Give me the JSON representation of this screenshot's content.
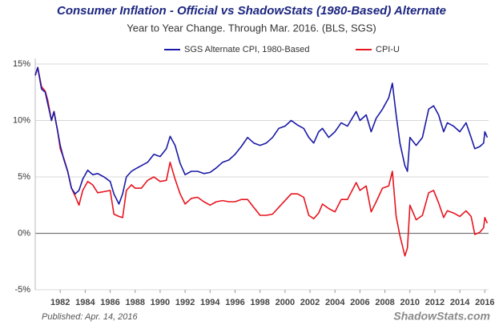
{
  "chart_data": {
    "type": "line",
    "title": "Consumer Inflation - Official vs ShadowStats (1980-Based) Alternate",
    "subtitle": "Year to Year Change. Through Mar. 2016.   (BLS, SGS)",
    "footnote": "Published: Apr. 14, 2016",
    "watermark": "ShadowStats.com",
    "x": [
      1980.0,
      1980.2,
      1980.5,
      1980.8,
      1981.0,
      1981.3,
      1981.5,
      1981.8,
      1982.0,
      1982.3,
      1982.6,
      1982.9,
      1983.2,
      1983.5,
      1983.8,
      1984.2,
      1984.6,
      1985.0,
      1985.5,
      1986.0,
      1986.3,
      1986.7,
      1987.0,
      1987.3,
      1987.7,
      1988.0,
      1988.5,
      1989.0,
      1989.5,
      1990.0,
      1990.5,
      1990.8,
      1991.2,
      1991.6,
      1992.0,
      1992.5,
      1993.0,
      1993.5,
      1994.0,
      1994.5,
      1995.0,
      1995.5,
      1996.0,
      1996.5,
      1997.0,
      1997.5,
      1998.0,
      1998.5,
      1999.0,
      1999.5,
      2000.0,
      2000.5,
      2001.0,
      2001.5,
      2001.9,
      2002.3,
      2002.7,
      2003.0,
      2003.5,
      2004.0,
      2004.5,
      2005.0,
      2005.7,
      2006.0,
      2006.5,
      2006.9,
      2007.3,
      2007.8,
      2008.3,
      2008.6,
      2008.9,
      2009.2,
      2009.6,
      2009.8,
      2010.0,
      2010.5,
      2011.0,
      2011.5,
      2011.9,
      2012.3,
      2012.7,
      2013.0,
      2013.5,
      2014.0,
      2014.5,
      2014.9,
      2015.2,
      2015.6,
      2015.9,
      2016.0,
      2016.2
    ],
    "series": [
      {
        "name": "SGS Alternate CPI, 1980-Based",
        "color": "#1a1aa6",
        "values": [
          14.0,
          14.7,
          12.8,
          12.5,
          11.5,
          10.0,
          10.8,
          9.0,
          7.8,
          6.5,
          5.5,
          4.0,
          3.5,
          3.8,
          4.8,
          5.6,
          5.2,
          5.3,
          5.0,
          4.6,
          3.5,
          2.6,
          3.5,
          5.0,
          5.5,
          5.7,
          6.0,
          6.3,
          7.0,
          6.8,
          7.5,
          8.6,
          7.8,
          6.2,
          5.2,
          5.5,
          5.5,
          5.3,
          5.4,
          5.8,
          6.3,
          6.5,
          7.0,
          7.7,
          8.5,
          8.0,
          7.8,
          8.0,
          8.5,
          9.3,
          9.5,
          10.0,
          9.6,
          9.3,
          8.5,
          8.0,
          9.0,
          9.3,
          8.5,
          9.0,
          9.8,
          9.5,
          10.8,
          10.0,
          10.5,
          9.0,
          10.2,
          11.0,
          12.0,
          13.3,
          10.5,
          8.0,
          6.0,
          5.5,
          8.5,
          7.8,
          8.5,
          11.0,
          11.3,
          10.5,
          9.0,
          9.8,
          9.5,
          9.0,
          9.8,
          8.5,
          7.5,
          7.7,
          8.0,
          9.0,
          8.5
        ]
      },
      {
        "name": "CPI-U",
        "color": "#e8141e",
        "values": [
          14.0,
          14.7,
          13.0,
          12.6,
          11.8,
          10.0,
          10.8,
          9.0,
          7.5,
          6.6,
          5.5,
          4.0,
          3.3,
          2.5,
          3.8,
          4.6,
          4.3,
          3.6,
          3.7,
          3.8,
          1.7,
          1.5,
          1.4,
          3.8,
          4.3,
          4.0,
          4.0,
          4.7,
          5.0,
          4.6,
          4.7,
          6.3,
          4.8,
          3.5,
          2.6,
          3.1,
          3.2,
          2.8,
          2.5,
          2.8,
          2.9,
          2.8,
          2.8,
          3.0,
          3.0,
          2.3,
          1.6,
          1.6,
          1.7,
          2.3,
          2.9,
          3.5,
          3.5,
          3.2,
          1.6,
          1.3,
          1.8,
          2.6,
          2.2,
          1.9,
          3.0,
          3.0,
          4.5,
          3.8,
          4.2,
          1.9,
          2.8,
          4.0,
          4.2,
          5.5,
          1.5,
          -0.2,
          -2.0,
          -1.3,
          2.5,
          1.2,
          1.6,
          3.6,
          3.8,
          2.7,
          1.4,
          2.0,
          1.8,
          1.5,
          2.0,
          1.5,
          -0.1,
          0.1,
          0.5,
          1.4,
          0.9
        ]
      }
    ],
    "xlim": [
      1980,
      2016.3
    ],
    "xticks": [
      1982,
      1984,
      1986,
      1988,
      1990,
      1992,
      1994,
      1996,
      1998,
      2000,
      2002,
      2004,
      2006,
      2008,
      2010,
      2012,
      2014,
      2016
    ],
    "ylim": [
      -5,
      15.5
    ],
    "yticks": [
      {
        "value": -5,
        "label": "-5%"
      },
      {
        "value": 0,
        "label": "0%"
      },
      {
        "value": 5,
        "label": "5%"
      },
      {
        "value": 10,
        "label": "10%"
      },
      {
        "value": 15,
        "label": "15%"
      }
    ],
    "grid": true
  }
}
